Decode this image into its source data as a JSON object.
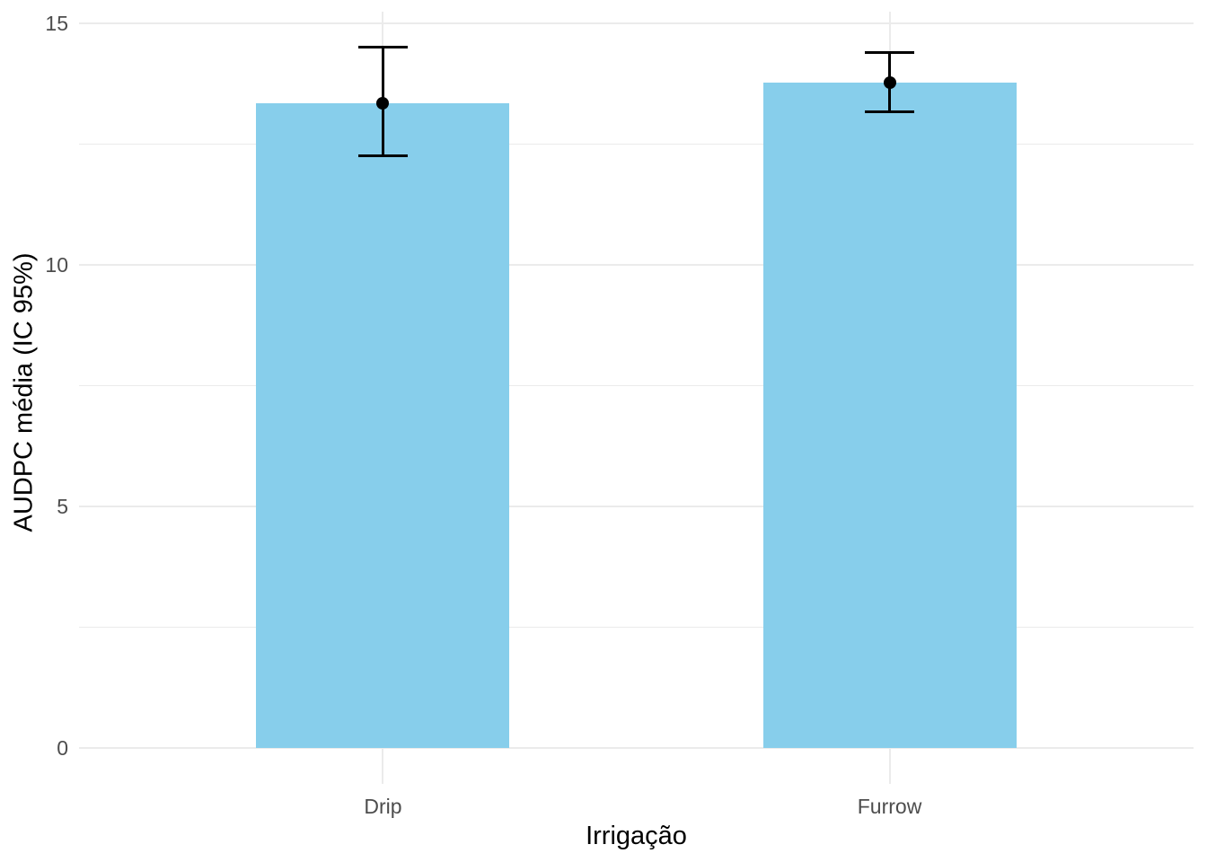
{
  "chart_data": {
    "type": "bar",
    "title": "",
    "xlabel": "Irrigação",
    "ylabel": "AUDPC média (IC 95%)",
    "categories": [
      "Drip",
      "Furrow"
    ],
    "series": [
      {
        "name": "AUDPC média",
        "values": [
          13.35,
          13.78
        ]
      }
    ],
    "error_bars": {
      "kind": "IC 95%",
      "low": [
        12.25,
        13.17
      ],
      "high": [
        14.5,
        14.4
      ]
    },
    "ylim": [
      0,
      15
    ],
    "y_major_ticks": [
      0,
      5,
      10,
      15
    ],
    "y_minor_ticks": [
      2.5,
      7.5,
      12.5
    ],
    "grid": "on",
    "legend": "none",
    "colors": {
      "bar_fill": "#87CEEB",
      "errorbar": "#000000",
      "point": "#000000",
      "gridline": "#EBEBEB",
      "tick_label": "#4D4D4D",
      "axis_title": "#000000",
      "background": "#FFFFFF"
    }
  }
}
